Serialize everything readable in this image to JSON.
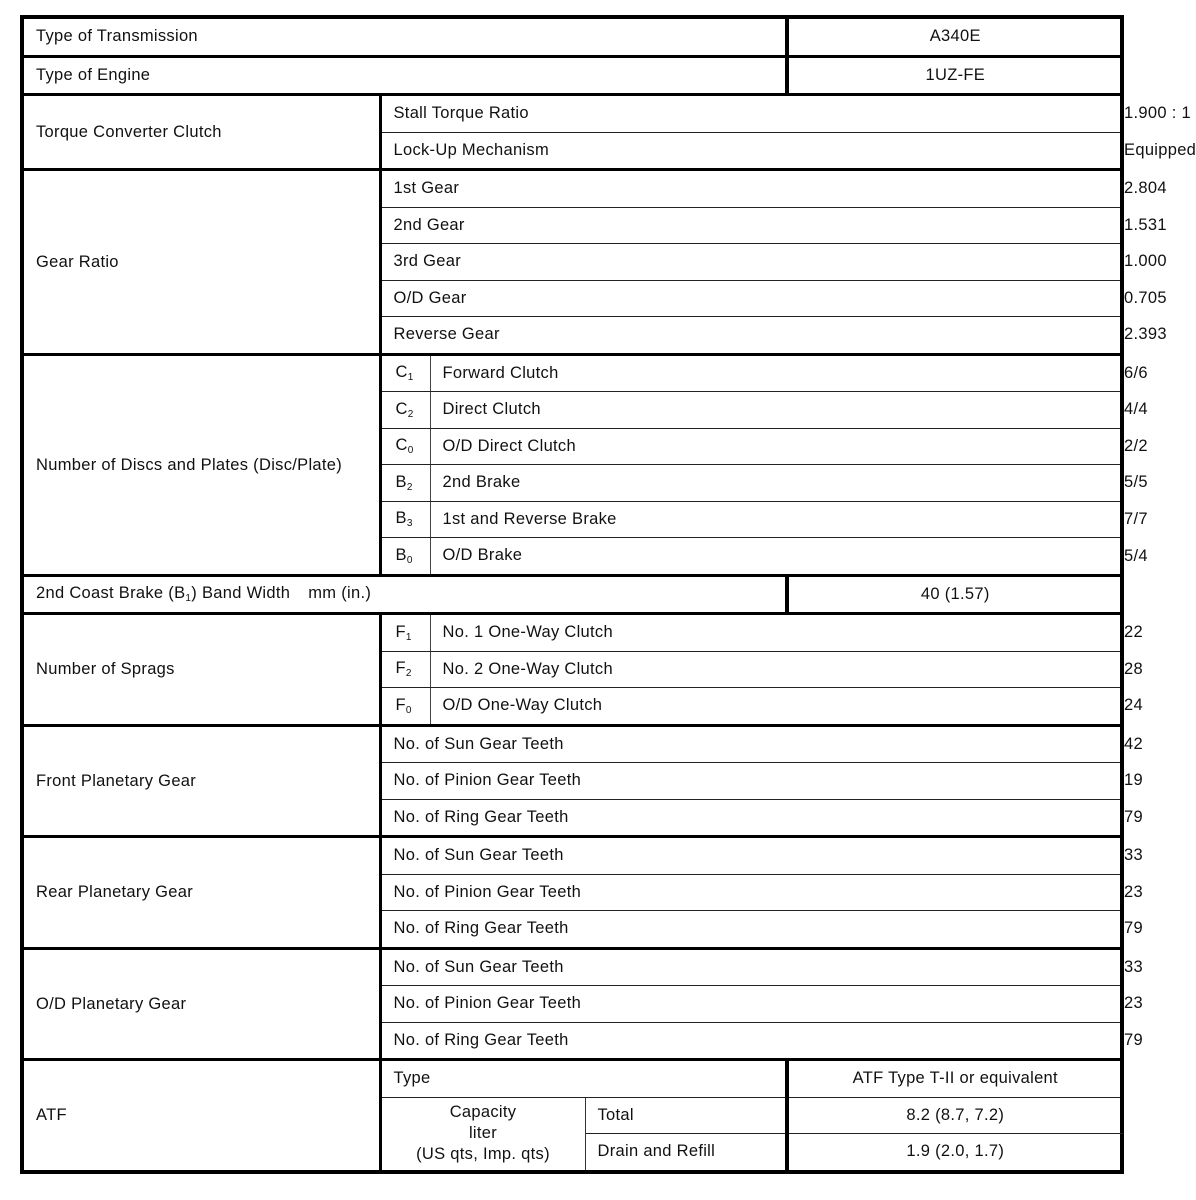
{
  "table": {
    "rows_top": [
      {
        "label": "Type of Transmission",
        "value": "A340E"
      },
      {
        "label": "Type of Engine",
        "value": "1UZ-FE"
      }
    ],
    "torque_converter": {
      "label": "Torque Converter Clutch",
      "items": [
        {
          "label": "Stall Torque Ratio",
          "value": "1.900 : 1"
        },
        {
          "label": "Lock-Up Mechanism",
          "value": "Equipped"
        }
      ]
    },
    "gear_ratio": {
      "label": "Gear Ratio",
      "items": [
        {
          "label": "1st Gear",
          "value": "2.804"
        },
        {
          "label": "2nd Gear",
          "value": "1.531"
        },
        {
          "label": "3rd Gear",
          "value": "1.000"
        },
        {
          "label": "O/D Gear",
          "value": "0.705"
        },
        {
          "label": "Reverse Gear",
          "value": "2.393"
        }
      ]
    },
    "discs": {
      "label": "Number of Discs and Plates (Disc/Plate)",
      "items": [
        {
          "code": "C",
          "sub": "1",
          "label": "Forward Clutch",
          "value": "6/6"
        },
        {
          "code": "C",
          "sub": "2",
          "label": "Direct Clutch",
          "value": "4/4"
        },
        {
          "code": "C",
          "sub": "0",
          "label": "O/D Direct Clutch",
          "value": "2/2"
        },
        {
          "code": "B",
          "sub": "2",
          "label": "2nd Brake",
          "value": "5/5"
        },
        {
          "code": "B",
          "sub": "3",
          "label": "1st and Reverse Brake",
          "value": "7/7"
        },
        {
          "code": "B",
          "sub": "0",
          "label": "O/D Brake",
          "value": "5/4"
        }
      ]
    },
    "band": {
      "prefix": "2nd Coast Brake (B",
      "sub": "1",
      "suffix": ") Band Width",
      "unit": "mm (in.)",
      "value": "40 (1.57)"
    },
    "sprags": {
      "label": "Number of Sprags",
      "items": [
        {
          "code": "F",
          "sub": "1",
          "label": "No. 1 One-Way Clutch",
          "value": "22"
        },
        {
          "code": "F",
          "sub": "2",
          "label": "No. 2 One-Way Clutch",
          "value": "28"
        },
        {
          "code": "F",
          "sub": "0",
          "label": "O/D One-Way Clutch",
          "value": "24"
        }
      ]
    },
    "front_planetary": {
      "label": "Front Planetary Gear",
      "items": [
        {
          "label": "No. of Sun Gear Teeth",
          "value": "42"
        },
        {
          "label": "No. of Pinion Gear Teeth",
          "value": "19"
        },
        {
          "label": "No. of Ring Gear Teeth",
          "value": "79"
        }
      ]
    },
    "rear_planetary": {
      "label": "Rear Planetary Gear",
      "items": [
        {
          "label": "No. of Sun Gear Teeth",
          "value": "33"
        },
        {
          "label": "No. of Pinion Gear Teeth",
          "value": "23"
        },
        {
          "label": "No. of Ring Gear Teeth",
          "value": "79"
        }
      ]
    },
    "od_planetary": {
      "label": "O/D Planetary Gear",
      "items": [
        {
          "label": "No. of Sun Gear Teeth",
          "value": "33"
        },
        {
          "label": "No. of Pinion Gear Teeth",
          "value": "23"
        },
        {
          "label": "No. of Ring Gear Teeth",
          "value": "79"
        }
      ]
    },
    "atf": {
      "label": "ATF",
      "type_label": "Type",
      "type_value": "ATF Type T-II or equivalent",
      "capacity_label": "Capacity",
      "capacity_unit": "liter",
      "capacity_unit2": "(US qts, Imp. qts)",
      "total_label": "Total",
      "total_value": "8.2 (8.7, 7.2)",
      "drain_label": "Drain and Refill",
      "drain_value": "1.9 (2.0, 1.7)"
    }
  }
}
